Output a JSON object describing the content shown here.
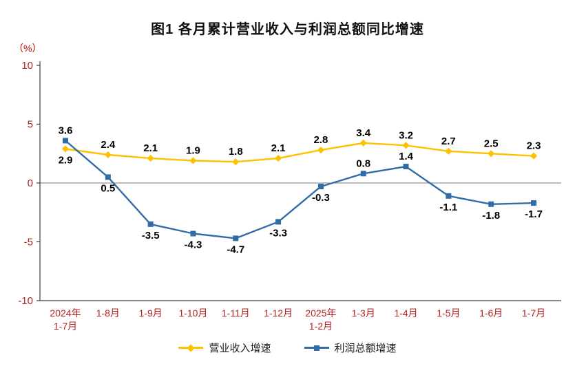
{
  "title": "图1  各月累计营业收入与利润总额同比增速",
  "unit_label": "（%）",
  "chart_data": {
    "type": "line",
    "ylim": [
      -10,
      10
    ],
    "yticks": [
      10,
      5,
      0,
      -5,
      -10
    ],
    "grid": "zero-line-only",
    "legend_position": "bottom-center",
    "categories": [
      [
        "2024年",
        "1-7月"
      ],
      [
        "1-8月"
      ],
      [
        "1-9月"
      ],
      [
        "1-10月"
      ],
      [
        "1-11月"
      ],
      [
        "1-12月"
      ],
      [
        "2025年",
        "1-2月"
      ],
      [
        "1-3月"
      ],
      [
        "1-4月"
      ],
      [
        "1-5月"
      ],
      [
        "1-6月"
      ],
      [
        "1-7月"
      ]
    ],
    "series": [
      {
        "name": "营业收入增速",
        "color": "#FFC000",
        "marker": "diamond",
        "values": [
          2.9,
          2.4,
          2.1,
          1.9,
          1.8,
          2.1,
          2.8,
          3.4,
          3.2,
          2.7,
          2.5,
          2.3
        ],
        "label_pos": [
          "below",
          "above",
          "above",
          "above",
          "above",
          "above",
          "above",
          "above",
          "above",
          "above",
          "above",
          "above"
        ]
      },
      {
        "name": "利润总额增速",
        "color": "#2E6DA6",
        "marker": "square",
        "values": [
          3.6,
          0.5,
          -3.5,
          -4.3,
          -4.7,
          -3.3,
          -0.3,
          0.8,
          1.4,
          -1.1,
          -1.8,
          -1.7
        ],
        "label_pos": [
          "above",
          "below",
          "below",
          "below",
          "below",
          "below",
          "below",
          "above",
          "above",
          "below",
          "below",
          "below"
        ]
      }
    ],
    "style": {
      "axis_text": "#B22222",
      "unit_text": "#C00000",
      "data_label": "#000000",
      "axis_line": "#404040",
      "zero_line": "#7a7a7a"
    }
  }
}
